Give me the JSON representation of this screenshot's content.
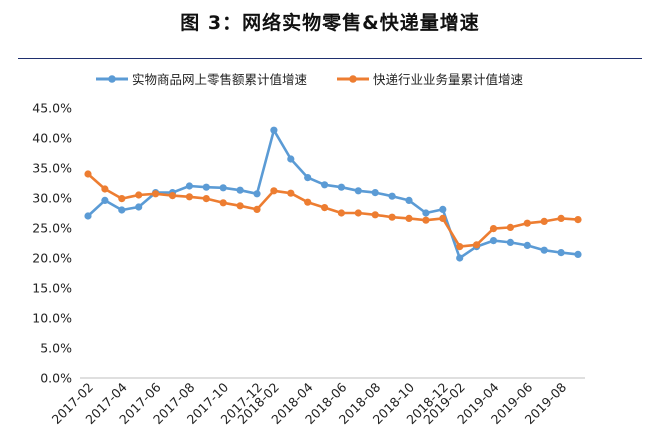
{
  "title": "图 3：网络实物零售&快递量增速",
  "chart_data": {
    "type": "line",
    "x": [
      "2017-02",
      "2017-03",
      "2017-04",
      "2017-05",
      "2017-06",
      "2017-07",
      "2017-08",
      "2017-09",
      "2017-10",
      "2017-11",
      "2017-12",
      "2018-02",
      "2018-03",
      "2018-04",
      "2018-05",
      "2018-06",
      "2018-07",
      "2018-08",
      "2018-09",
      "2018-10",
      "2018-11",
      "2018-12",
      "2019-02",
      "2019-03",
      "2019-04",
      "2019-05",
      "2019-06",
      "2019-07",
      "2019-08",
      "2019-09"
    ],
    "x_tick_labels": [
      "2017-02",
      "2017-04",
      "2017-06",
      "2017-08",
      "2017-10",
      "2017-12",
      "2018-02",
      "2018-04",
      "2018-06",
      "2018-08",
      "2018-10",
      "2018-12",
      "2019-02",
      "2019-04",
      "2019-06",
      "2019-08"
    ],
    "ylim": [
      0,
      45
    ],
    "y_ticks": [
      "0.0%",
      "5.0%",
      "10.0%",
      "15.0%",
      "20.0%",
      "25.0%",
      "30.0%",
      "35.0%",
      "40.0%",
      "45.0%"
    ],
    "grid": false,
    "legend_position": "top",
    "series": [
      {
        "name": "实物商品网上零售额累计值增速",
        "color": "#5b9bd5",
        "values": [
          27.0,
          29.6,
          28.0,
          28.5,
          30.9,
          30.9,
          32.0,
          31.8,
          31.7,
          31.3,
          30.7,
          41.3,
          36.5,
          33.4,
          32.2,
          31.8,
          31.2,
          30.9,
          30.3,
          29.6,
          27.5,
          28.1,
          20.0,
          21.9,
          22.9,
          22.6,
          22.1,
          21.3,
          20.9,
          20.6
        ]
      },
      {
        "name": "快递行业业务量累计值增速",
        "color": "#ed7d31",
        "values": [
          34.0,
          31.5,
          29.9,
          30.5,
          30.7,
          30.4,
          30.2,
          29.9,
          29.2,
          28.7,
          28.1,
          31.2,
          30.8,
          29.3,
          28.4,
          27.5,
          27.5,
          27.2,
          26.8,
          26.6,
          26.3,
          26.6,
          21.9,
          22.2,
          24.9,
          25.1,
          25.8,
          26.1,
          26.6,
          26.4
        ]
      }
    ]
  }
}
